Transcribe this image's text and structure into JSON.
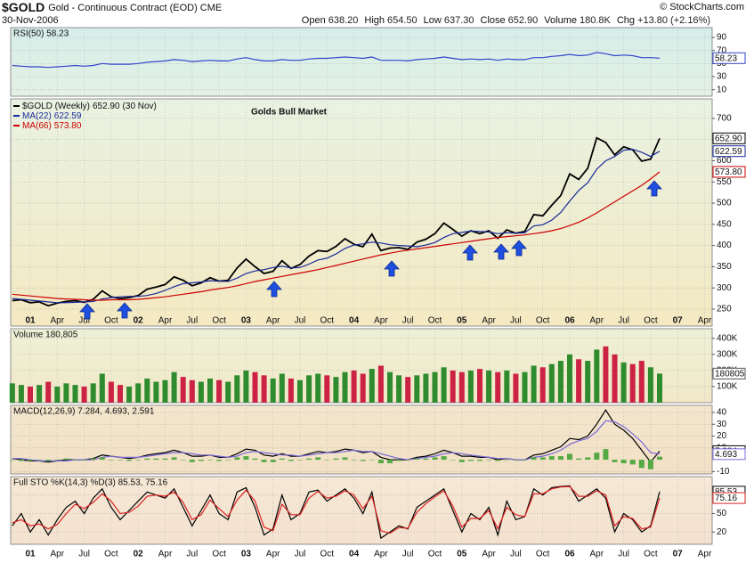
{
  "header": {
    "symbol": "$GOLD",
    "name": "Gold - Continuous Contract (EOD) CME",
    "date": "30-Nov-2006",
    "credit": "© StockCharts.com",
    "quote": [
      {
        "label": "Open",
        "value": "638.20"
      },
      {
        "label": "High",
        "value": "654.50"
      },
      {
        "label": "Low",
        "value": "637.30"
      },
      {
        "label": "Close",
        "value": "652.90"
      },
      {
        "label": "Volume",
        "value": "180.8K"
      },
      {
        "label": "Chg",
        "value": "+13.80 (+2.16%)"
      }
    ]
  },
  "chart_data": [
    {
      "type": "line",
      "title": "RSI(50) 58.23",
      "ylim": [
        0,
        105
      ],
      "yticks": [
        10,
        30,
        50,
        70,
        90
      ],
      "grid": true,
      "series": [
        {
          "name": "RSI(50)",
          "color": "#3344cc",
          "values": [
            47,
            46,
            45,
            45,
            44,
            45,
            46,
            47,
            46,
            47,
            50,
            49,
            49,
            49,
            50,
            52,
            53,
            54,
            56,
            55,
            53,
            54,
            55,
            54,
            54,
            57,
            59,
            56,
            54,
            54,
            56,
            55,
            55,
            57,
            58,
            58,
            59,
            60,
            59,
            58,
            60,
            55,
            55,
            55,
            54,
            56,
            57,
            58,
            60,
            58,
            56,
            57,
            56,
            57,
            55,
            57,
            56,
            56,
            59,
            59,
            61,
            62,
            64,
            62,
            63,
            67,
            65,
            62,
            63,
            62,
            59,
            59,
            58.23
          ]
        }
      ]
    },
    {
      "type": "line",
      "annotation": "Golds Bull Market",
      "ylim": [
        210,
        746
      ],
      "yticks": [
        250,
        300,
        350,
        400,
        450,
        500,
        550,
        600,
        650,
        700
      ],
      "grid": true,
      "categories": [
        null,
        null,
        "01",
        null,
        null,
        "Apr",
        null,
        null,
        "Jul",
        null,
        null,
        "Oct",
        null,
        null,
        "02",
        null,
        null,
        "Apr",
        null,
        null,
        "Jul",
        null,
        null,
        "Oct",
        null,
        null,
        "03",
        null,
        null,
        "Apr",
        null,
        null,
        "Jul",
        null,
        null,
        "Oct",
        null,
        null,
        "04",
        null,
        null,
        "Apr",
        null,
        null,
        "Jul",
        null,
        null,
        "Oct",
        null,
        null,
        "05",
        null,
        null,
        "Apr",
        null,
        null,
        "Jul",
        null,
        null,
        "Oct",
        null,
        null,
        "06",
        null,
        null,
        "Apr",
        null,
        null,
        "Jul",
        null,
        null,
        "Oct",
        null,
        null,
        "07",
        null,
        null,
        "Apr"
      ],
      "series": [
        {
          "name": "$GOLD (Weekly)",
          "last_label": "652.90",
          "date_label": "(30 Nov)",
          "color": "#000000",
          "values": [
            270,
            272,
            265,
            267,
            258,
            264,
            268,
            270,
            266,
            273,
            293,
            279,
            275,
            277,
            282,
            297,
            302,
            308,
            326,
            318,
            305,
            312,
            324,
            316,
            318,
            347,
            368,
            350,
            334,
            339,
            364,
            346,
            355,
            375,
            388,
            386,
            398,
            416,
            403,
            397,
            427,
            388,
            394,
            395,
            391,
            408,
            415,
            428,
            453,
            438,
            422,
            435,
            428,
            435,
            417,
            437,
            429,
            433,
            473,
            470,
            495,
            518,
            569,
            556,
            582,
            654,
            643,
            614,
            633,
            626,
            599,
            604,
            652.9,
            null,
            null,
            null,
            null,
            null
          ]
        },
        {
          "name": "MA(22)",
          "last_label": "622.59",
          "color": "#1a2a9a",
          "values": [
            275,
            273,
            271,
            269,
            267,
            265,
            265,
            266,
            267,
            268,
            274,
            277,
            279,
            280,
            280,
            282,
            287,
            294,
            303,
            310,
            312,
            314,
            317,
            316,
            315,
            323,
            334,
            340,
            343,
            348,
            351,
            347,
            348,
            356,
            366,
            370,
            380,
            393,
            401,
            404,
            408,
            406,
            402,
            400,
            399,
            397,
            401,
            407,
            419,
            428,
            431,
            434,
            433,
            432,
            428,
            430,
            429,
            430,
            446,
            449,
            460,
            478,
            505,
            530,
            548,
            580,
            600,
            610,
            625,
            627,
            620,
            610,
            622.59,
            null,
            null,
            null,
            null,
            null
          ]
        },
        {
          "name": "MA(66)",
          "last_label": "573.80",
          "color": "#cc0000",
          "values": [
            285,
            283,
            281,
            279,
            277,
            275,
            274,
            273,
            272,
            271,
            271,
            272,
            272,
            272,
            273,
            275,
            277,
            279,
            282,
            285,
            288,
            291,
            295,
            298,
            301,
            305,
            310,
            315,
            319,
            323,
            327,
            331,
            335,
            339,
            343,
            348,
            353,
            358,
            363,
            368,
            373,
            378,
            382,
            386,
            389,
            392,
            395,
            398,
            401,
            404,
            407,
            410,
            413,
            416,
            419,
            421,
            423,
            425,
            428,
            431,
            435,
            440,
            447,
            455,
            465,
            477,
            490,
            503,
            516,
            529,
            542,
            557,
            573.8,
            null,
            null,
            null,
            null,
            null
          ]
        }
      ]
    },
    {
      "type": "bar",
      "title": "Volume 180,805",
      "ylim": [
        0,
        460000
      ],
      "yticks": [
        {
          "value": 100000,
          "label": "100K"
        },
        {
          "value": 200000,
          "label": "200K"
        },
        {
          "value": 300000,
          "label": "300K"
        },
        {
          "value": 400000,
          "label": "400K"
        }
      ],
      "grid": true,
      "up_color": "#2e8b2e",
      "down_color": "#cc2244",
      "values": [
        120000,
        110000,
        100000,
        110000,
        130000,
        100000,
        120000,
        110000,
        100000,
        120000,
        180000,
        130000,
        110000,
        100000,
        120000,
        150000,
        130000,
        140000,
        190000,
        160000,
        140000,
        130000,
        150000,
        140000,
        130000,
        170000,
        200000,
        190000,
        170000,
        150000,
        180000,
        150000,
        140000,
        170000,
        180000,
        170000,
        160000,
        190000,
        200000,
        180000,
        210000,
        230000,
        190000,
        170000,
        160000,
        170000,
        180000,
        190000,
        220000,
        200000,
        190000,
        200000,
        210000,
        200000,
        190000,
        200000,
        180000,
        190000,
        230000,
        220000,
        240000,
        260000,
        300000,
        270000,
        260000,
        330000,
        350000,
        300000,
        250000,
        240000,
        260000,
        220000,
        180805
      ]
    },
    {
      "type": "line",
      "title": "MACD(12,26,9) 7.284, 4.693, 2.591",
      "ylim": [
        -12,
        46
      ],
      "yticks": [
        -10,
        10,
        20,
        30,
        40
      ],
      "grid": true,
      "series": [
        {
          "name": "MACD",
          "color": "#000000",
          "values": [
            1,
            0,
            -1,
            -1,
            -2,
            -1,
            0,
            0,
            0,
            1,
            4,
            3,
            2,
            1,
            2,
            4,
            5,
            6,
            8,
            6,
            3,
            3,
            4,
            2,
            2,
            5,
            9,
            8,
            4,
            3,
            5,
            3,
            3,
            5,
            7,
            6,
            7,
            9,
            8,
            6,
            7,
            2,
            0,
            0,
            0,
            2,
            3,
            5,
            8,
            6,
            3,
            3,
            2,
            2,
            0,
            1,
            0,
            0,
            4,
            5,
            8,
            11,
            18,
            17,
            20,
            30,
            42,
            30,
            25,
            18,
            8,
            -2,
            7.284
          ]
        },
        {
          "name": "Signal",
          "color": "#7a6ad8",
          "values": [
            1,
            1,
            0,
            -1,
            -1,
            -1,
            -1,
            0,
            0,
            0,
            2,
            3,
            2,
            2,
            2,
            3,
            4,
            5,
            6,
            6,
            5,
            4,
            4,
            3,
            2,
            3,
            6,
            7,
            6,
            5,
            4,
            4,
            3,
            4,
            5,
            6,
            6,
            7,
            8,
            7,
            7,
            5,
            3,
            1,
            0,
            1,
            2,
            3,
            5,
            6,
            5,
            4,
            3,
            2,
            1,
            1,
            0,
            0,
            2,
            3,
            5,
            8,
            13,
            16,
            18,
            24,
            33,
            32,
            28,
            22,
            15,
            6,
            4.693
          ]
        },
        {
          "name": "Histogram",
          "style": "histogram",
          "color": "#55aa44",
          "values": [
            0,
            -1,
            -1,
            0,
            -1,
            0,
            1,
            0,
            0,
            1,
            2,
            0,
            0,
            -1,
            0,
            1,
            1,
            1,
            2,
            0,
            -2,
            -1,
            0,
            -1,
            0,
            2,
            3,
            1,
            -2,
            -2,
            1,
            -1,
            0,
            1,
            2,
            0,
            1,
            2,
            0,
            -1,
            0,
            -3,
            -3,
            -1,
            0,
            1,
            1,
            2,
            3,
            0,
            -2,
            -1,
            -1,
            0,
            -1,
            0,
            0,
            0,
            2,
            2,
            3,
            3,
            5,
            1,
            2,
            6,
            9,
            -2,
            -3,
            -4,
            -7,
            -8,
            2.591
          ]
        }
      ]
    },
    {
      "type": "line",
      "title": "Full STO %K(14,3) %D(3) 85.53, 75.16",
      "ylim": [
        0,
        110
      ],
      "yticks": [
        20,
        50,
        80
      ],
      "grid": true,
      "categories": [
        null,
        null,
        "01",
        null,
        null,
        "Apr",
        null,
        null,
        "Jul",
        null,
        null,
        "Oct",
        null,
        null,
        "02",
        null,
        null,
        "Apr",
        null,
        null,
        "Jul",
        null,
        null,
        "Oct",
        null,
        null,
        "03",
        null,
        null,
        "Apr",
        null,
        null,
        "Jul",
        null,
        null,
        "Oct",
        null,
        null,
        "04",
        null,
        null,
        "Apr",
        null,
        null,
        "Jul",
        null,
        null,
        "Oct",
        null,
        null,
        "05",
        null,
        null,
        "Apr",
        null,
        null,
        "Jul",
        null,
        null,
        "Oct",
        null,
        null,
        "06",
        null,
        null,
        "Apr",
        null,
        null,
        "Jul",
        null,
        null,
        "Oct",
        null,
        null,
        "07",
        null,
        null,
        "Apr"
      ],
      "series": [
        {
          "name": "%K",
          "color": "#000000",
          "values": [
            30,
            50,
            20,
            40,
            15,
            40,
            60,
            70,
            50,
            75,
            90,
            60,
            40,
            55,
            70,
            85,
            80,
            75,
            90,
            60,
            30,
            55,
            80,
            50,
            40,
            85,
            92,
            60,
            15,
            25,
            80,
            40,
            50,
            85,
            88,
            70,
            80,
            90,
            75,
            50,
            85,
            10,
            20,
            30,
            25,
            60,
            70,
            80,
            90,
            55,
            20,
            50,
            40,
            60,
            15,
            70,
            40,
            45,
            90,
            80,
            92,
            94,
            95,
            70,
            80,
            90,
            75,
            20,
            50,
            40,
            20,
            30,
            85.53,
            null,
            null,
            null,
            null,
            null
          ]
        },
        {
          "name": "%D",
          "color": "#dd2222",
          "values": [
            35,
            40,
            30,
            33,
            25,
            32,
            50,
            65,
            58,
            68,
            82,
            70,
            50,
            52,
            62,
            78,
            80,
            78,
            85,
            68,
            40,
            48,
            72,
            58,
            45,
            72,
            88,
            70,
            28,
            22,
            65,
            48,
            48,
            75,
            86,
            75,
            78,
            87,
            80,
            58,
            78,
            22,
            18,
            27,
            26,
            52,
            66,
            77,
            87,
            62,
            28,
            42,
            42,
            55,
            25,
            60,
            48,
            45,
            82,
            82,
            90,
            93,
            94,
            78,
            78,
            87,
            80,
            30,
            45,
            42,
            25,
            28,
            75.16,
            null,
            null,
            null,
            null,
            null
          ]
        }
      ]
    }
  ]
}
